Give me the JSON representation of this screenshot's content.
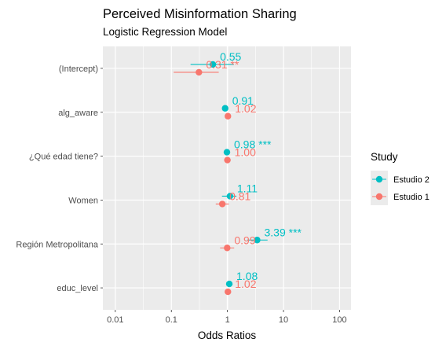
{
  "chart_data": {
    "type": "scatter",
    "title": "Perceived Misinformation Sharing",
    "subtitle": "Logistic Regression Model",
    "xlabel": "Odds Ratios",
    "ylabel": "",
    "x_scale": "log10",
    "xlim": [
      0.006,
      160
    ],
    "x_ticks": [
      "0.01",
      "0.1",
      "1",
      "10",
      "100"
    ],
    "x_tick_values": [
      0.01,
      0.1,
      1,
      10,
      100
    ],
    "categories": [
      "(Intercept)",
      "alg_aware",
      "¿Qué edad tiene?",
      "Women",
      "Región Metropolitana",
      "educ_level"
    ],
    "reference_line": 1,
    "grid": true,
    "legend": {
      "title": "Study",
      "position": "right"
    },
    "series": [
      {
        "name": "Estudio 2",
        "color": "#00BFC4",
        "points": [
          {
            "term": "(Intercept)",
            "or": 0.55,
            "lo": 0.22,
            "hi": 1.3,
            "label": "0.55"
          },
          {
            "term": "alg_aware",
            "or": 0.91,
            "lo": 0.84,
            "hi": 0.99,
            "label": "0.91"
          },
          {
            "term": "¿Qué edad tiene?",
            "or": 0.98,
            "lo": 0.97,
            "hi": 0.99,
            "label": "0.98 ***"
          },
          {
            "term": "Women",
            "or": 1.11,
            "lo": 0.8,
            "hi": 1.45,
            "label": "1.11"
          },
          {
            "term": "Región Metropolitana",
            "or": 3.39,
            "lo": 2.25,
            "hi": 5.2,
            "label": "3.39 ***"
          },
          {
            "term": "educ_level",
            "or": 1.08,
            "lo": 0.99,
            "hi": 1.18,
            "label": "1.08"
          }
        ]
      },
      {
        "name": "Estudio 1",
        "color": "#F8766D",
        "points": [
          {
            "term": "(Intercept)",
            "or": 0.31,
            "lo": 0.11,
            "hi": 0.7,
            "label": "0.31 **"
          },
          {
            "term": "alg_aware",
            "or": 1.02,
            "lo": 0.94,
            "hi": 1.1,
            "label": "1.02"
          },
          {
            "term": "¿Qué edad tiene?",
            "or": 1.0,
            "lo": 0.99,
            "hi": 1.01,
            "label": "1.00"
          },
          {
            "term": "Women",
            "or": 0.81,
            "lo": 0.62,
            "hi": 1.06,
            "label": "0.81"
          },
          {
            "term": "Región Metropolitana",
            "or": 0.99,
            "lo": 0.74,
            "hi": 1.32,
            "label": "0.99"
          },
          {
            "term": "educ_level",
            "or": 1.02,
            "lo": 0.95,
            "hi": 1.09,
            "label": "1.02"
          }
        ]
      }
    ]
  }
}
